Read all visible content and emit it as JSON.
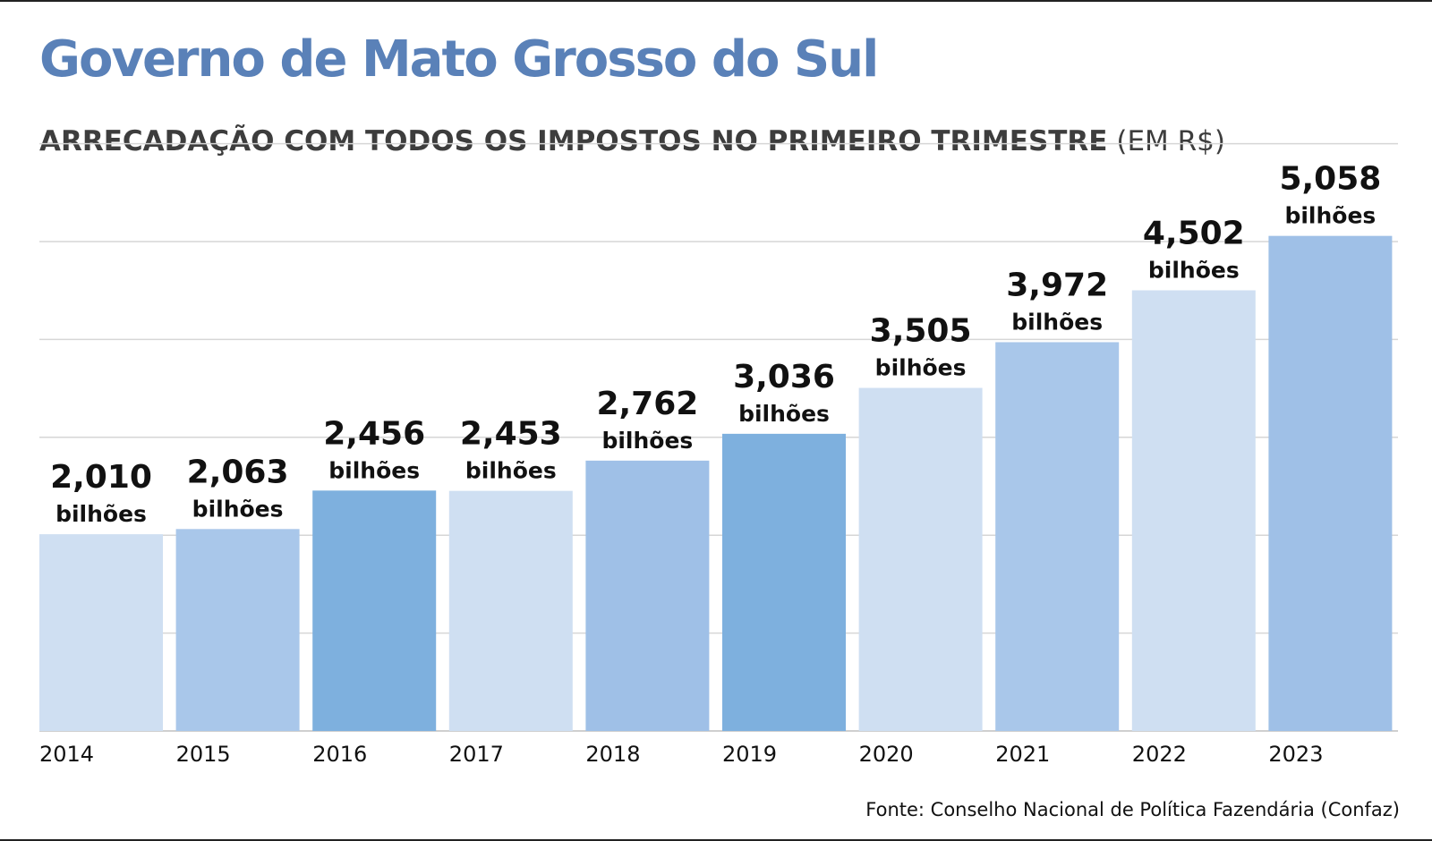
{
  "header": {
    "title": "Governo de Mato Grosso do Sul",
    "subtitle_main": "ARRECADAÇÃO COM TODOS OS IMPOSTOS NO PRIMEIRO TRIMESTRE",
    "subtitle_unit": "(EM R$)"
  },
  "footer": {
    "source": "Fonte: Conselho Nacional de Política Fazendária (Confaz)"
  },
  "chart_data": {
    "type": "bar",
    "title": "",
    "xlabel": "",
    "ylabel": "",
    "categories": [
      "2014",
      "2015",
      "2016",
      "2017",
      "2018",
      "2019",
      "2020",
      "2021",
      "2022",
      "2023"
    ],
    "values": [
      2.01,
      2.063,
      2.456,
      2.453,
      2.762,
      3.036,
      3.505,
      3.972,
      4.502,
      5.058
    ],
    "value_labels": [
      "2,010",
      "2,063",
      "2,456",
      "2,453",
      "2,762",
      "3,036",
      "3,505",
      "3,972",
      "4,502",
      "5,058"
    ],
    "unit_label": "bilhões",
    "bar_colors": [
      "#cfdff2",
      "#a9c7ea",
      "#7eb0de",
      "#cfdff2",
      "#9fc0e7",
      "#7eb0de",
      "#cfdff2",
      "#a9c7ea",
      "#cfdff2",
      "#9fc0e7"
    ],
    "grid": true,
    "legend": "none"
  }
}
